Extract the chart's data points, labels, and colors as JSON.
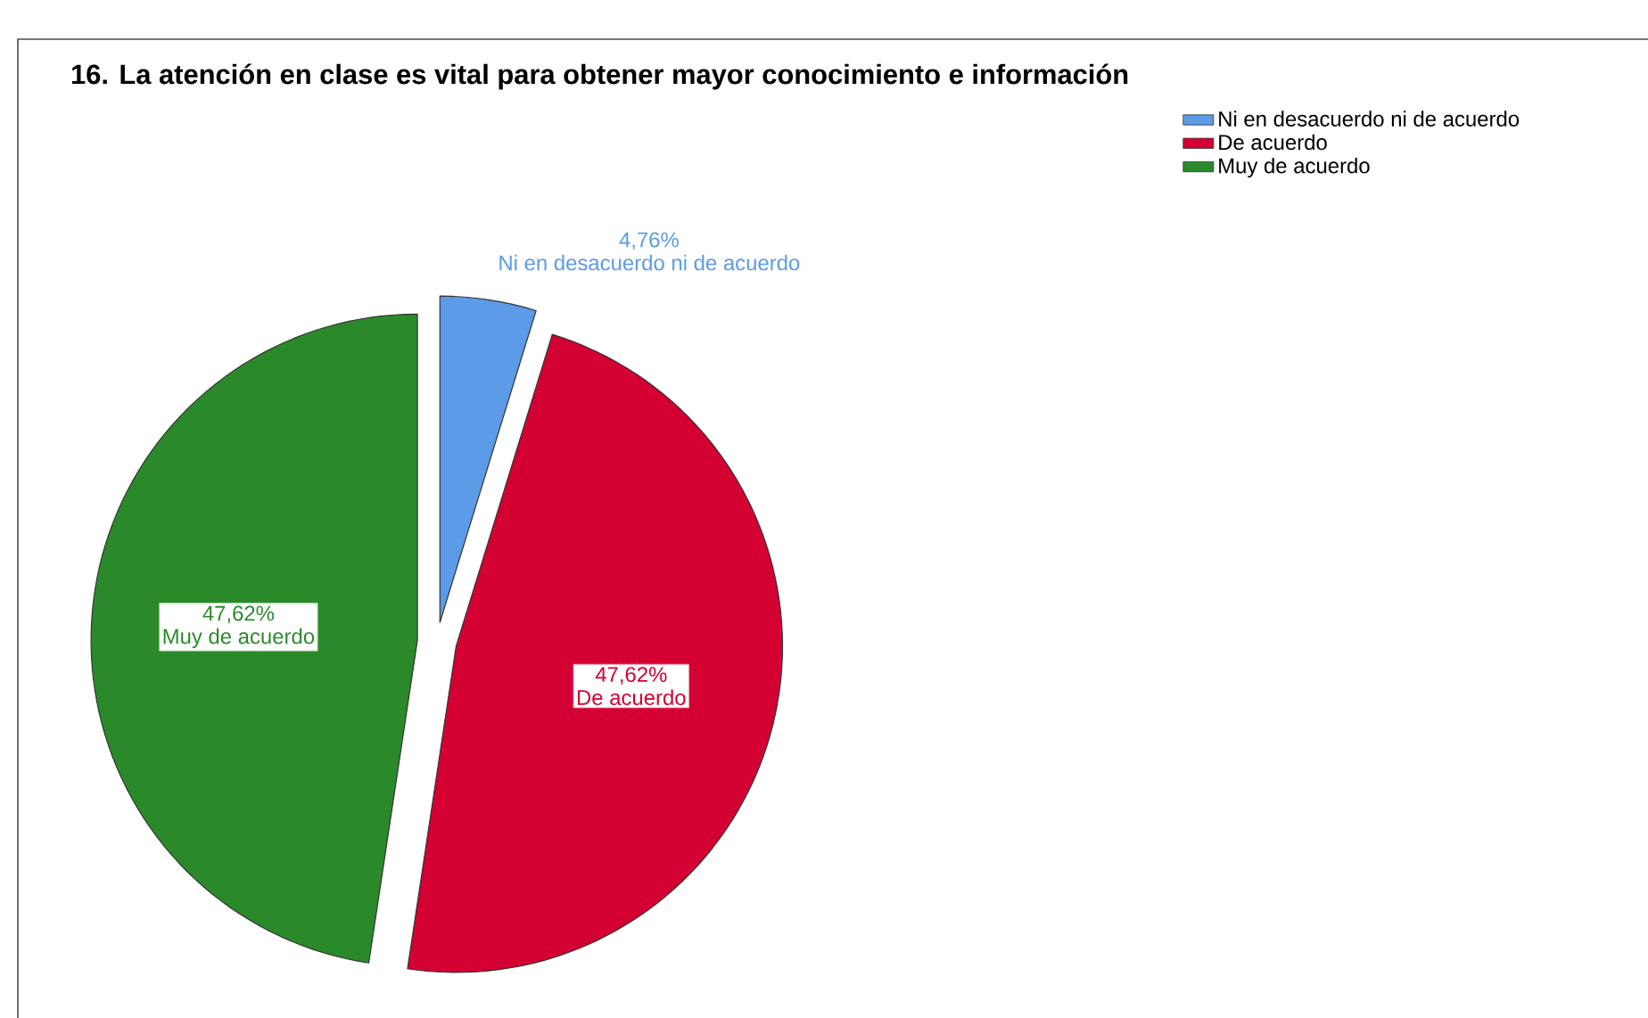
{
  "chart_data": {
    "type": "pie",
    "title": "16. La atención en clase es vital para obtener mayor conocimiento e información",
    "categories": [
      "Ni en desacuerdo ni de acuerdo",
      "De acuerdo",
      "Muy de acuerdo"
    ],
    "values": [
      4.76,
      47.62,
      47.62
    ],
    "colors": [
      "#5b9be8",
      "#d40032",
      "#2a8a2a"
    ],
    "value_labels": [
      "4,76%",
      "47,62%",
      "47,62%"
    ],
    "legend": "top right"
  }
}
